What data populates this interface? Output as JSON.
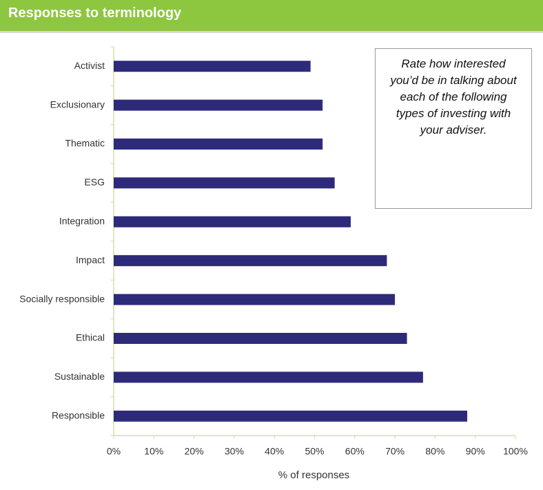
{
  "chart_data": {
    "type": "barh",
    "title": "Responses to terminology",
    "annotation": "Rate how interested you’d be in talking about each of the following types of investing with your adviser.",
    "xlabel": "% of responses",
    "categories": [
      "Activist",
      "Exclusionary",
      "Thematic",
      "ESG",
      "Integration",
      "Impact",
      "Socially responsible",
      "Ethical",
      "Sustainable",
      "Responsible"
    ],
    "values": [
      49,
      52,
      52,
      55,
      59,
      68,
      70,
      73,
      77,
      88
    ],
    "color": "#2e2a7a",
    "xlim": [
      0,
      100
    ],
    "xticks": [
      {
        "value": 0,
        "label": "0%"
      },
      {
        "value": 10,
        "label": "10%"
      },
      {
        "value": 20,
        "label": "20%"
      },
      {
        "value": 30,
        "label": "30%"
      },
      {
        "value": 40,
        "label": "40%"
      },
      {
        "value": 50,
        "label": "50%"
      },
      {
        "value": 60,
        "label": "60%"
      },
      {
        "value": 70,
        "label": "70%"
      },
      {
        "value": 80,
        "label": "80%"
      },
      {
        "value": 90,
        "label": "90%"
      },
      {
        "value": 100,
        "label": "100%"
      }
    ]
  }
}
